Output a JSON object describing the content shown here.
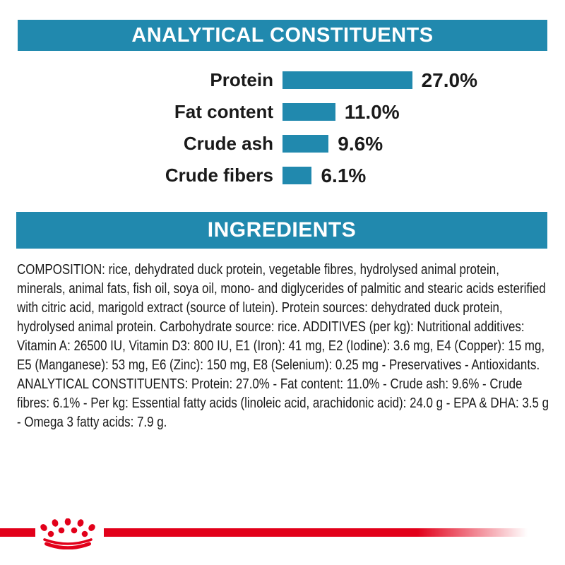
{
  "colors": {
    "teal": "#2189AE",
    "brand_red": "#E2001A",
    "text": "#1a1a1a",
    "header_text": "#ffffff",
    "background": "#ffffff"
  },
  "sections": {
    "analytical_header": "ANALYTICAL CONSTITUENTS",
    "ingredients_header": "INGREDIENTS"
  },
  "chart_data": {
    "type": "bar",
    "orientation": "horizontal",
    "title": "ANALYTICAL CONSTITUENTS",
    "categories": [
      "Protein",
      "Fat content",
      "Crude ash",
      "Crude fibers"
    ],
    "values": [
      27.0,
      11.0,
      9.6,
      6.1
    ],
    "value_labels": [
      "27.0%",
      "11.0%",
      "9.6%",
      "6.1%"
    ],
    "unit": "%",
    "bar_color": "#2189AE",
    "xlim": [
      0,
      30
    ],
    "grid": false,
    "legend": false
  },
  "ingredients": {
    "text": "COMPOSITION: rice, dehydrated duck protein, vegetable fibres, hydrolysed animal protein, minerals, animal fats, fish oil, soya oil, mono- and diglycerides of palmitic and stearic acids esterified with citric acid, marigold extract (source of lutein). Protein sources: dehydrated duck protein, hydrolysed animal protein. Carbohydrate source: rice. ADDITIVES (per kg): Nutritional additives: Vitamin A: 26500 IU, Vitamin D3: 800 IU, E1 (Iron): 41 mg, E2 (Iodine): 3.6 mg, E4 (Copper): 15 mg, E5 (Manganese): 53 mg, E6 (Zinc): 150 mg, E8 (Selenium): 0.25 mg - Preservatives - Antioxidants. ANALYTICAL CONSTITUENTS: Protein: 27.0% - Fat content: 11.0% - Crude ash: 9.6% - Crude fibres: 6.1% - Per kg: Essential fatty acids (linoleic acid, arachidonic acid): 24.0 g - EPA & DHA: 3.5 g - Omega 3 fatty acids: 7.9 g."
  },
  "footer": {
    "logo": "royal-canin-crown",
    "band_color": "#E2001A"
  }
}
